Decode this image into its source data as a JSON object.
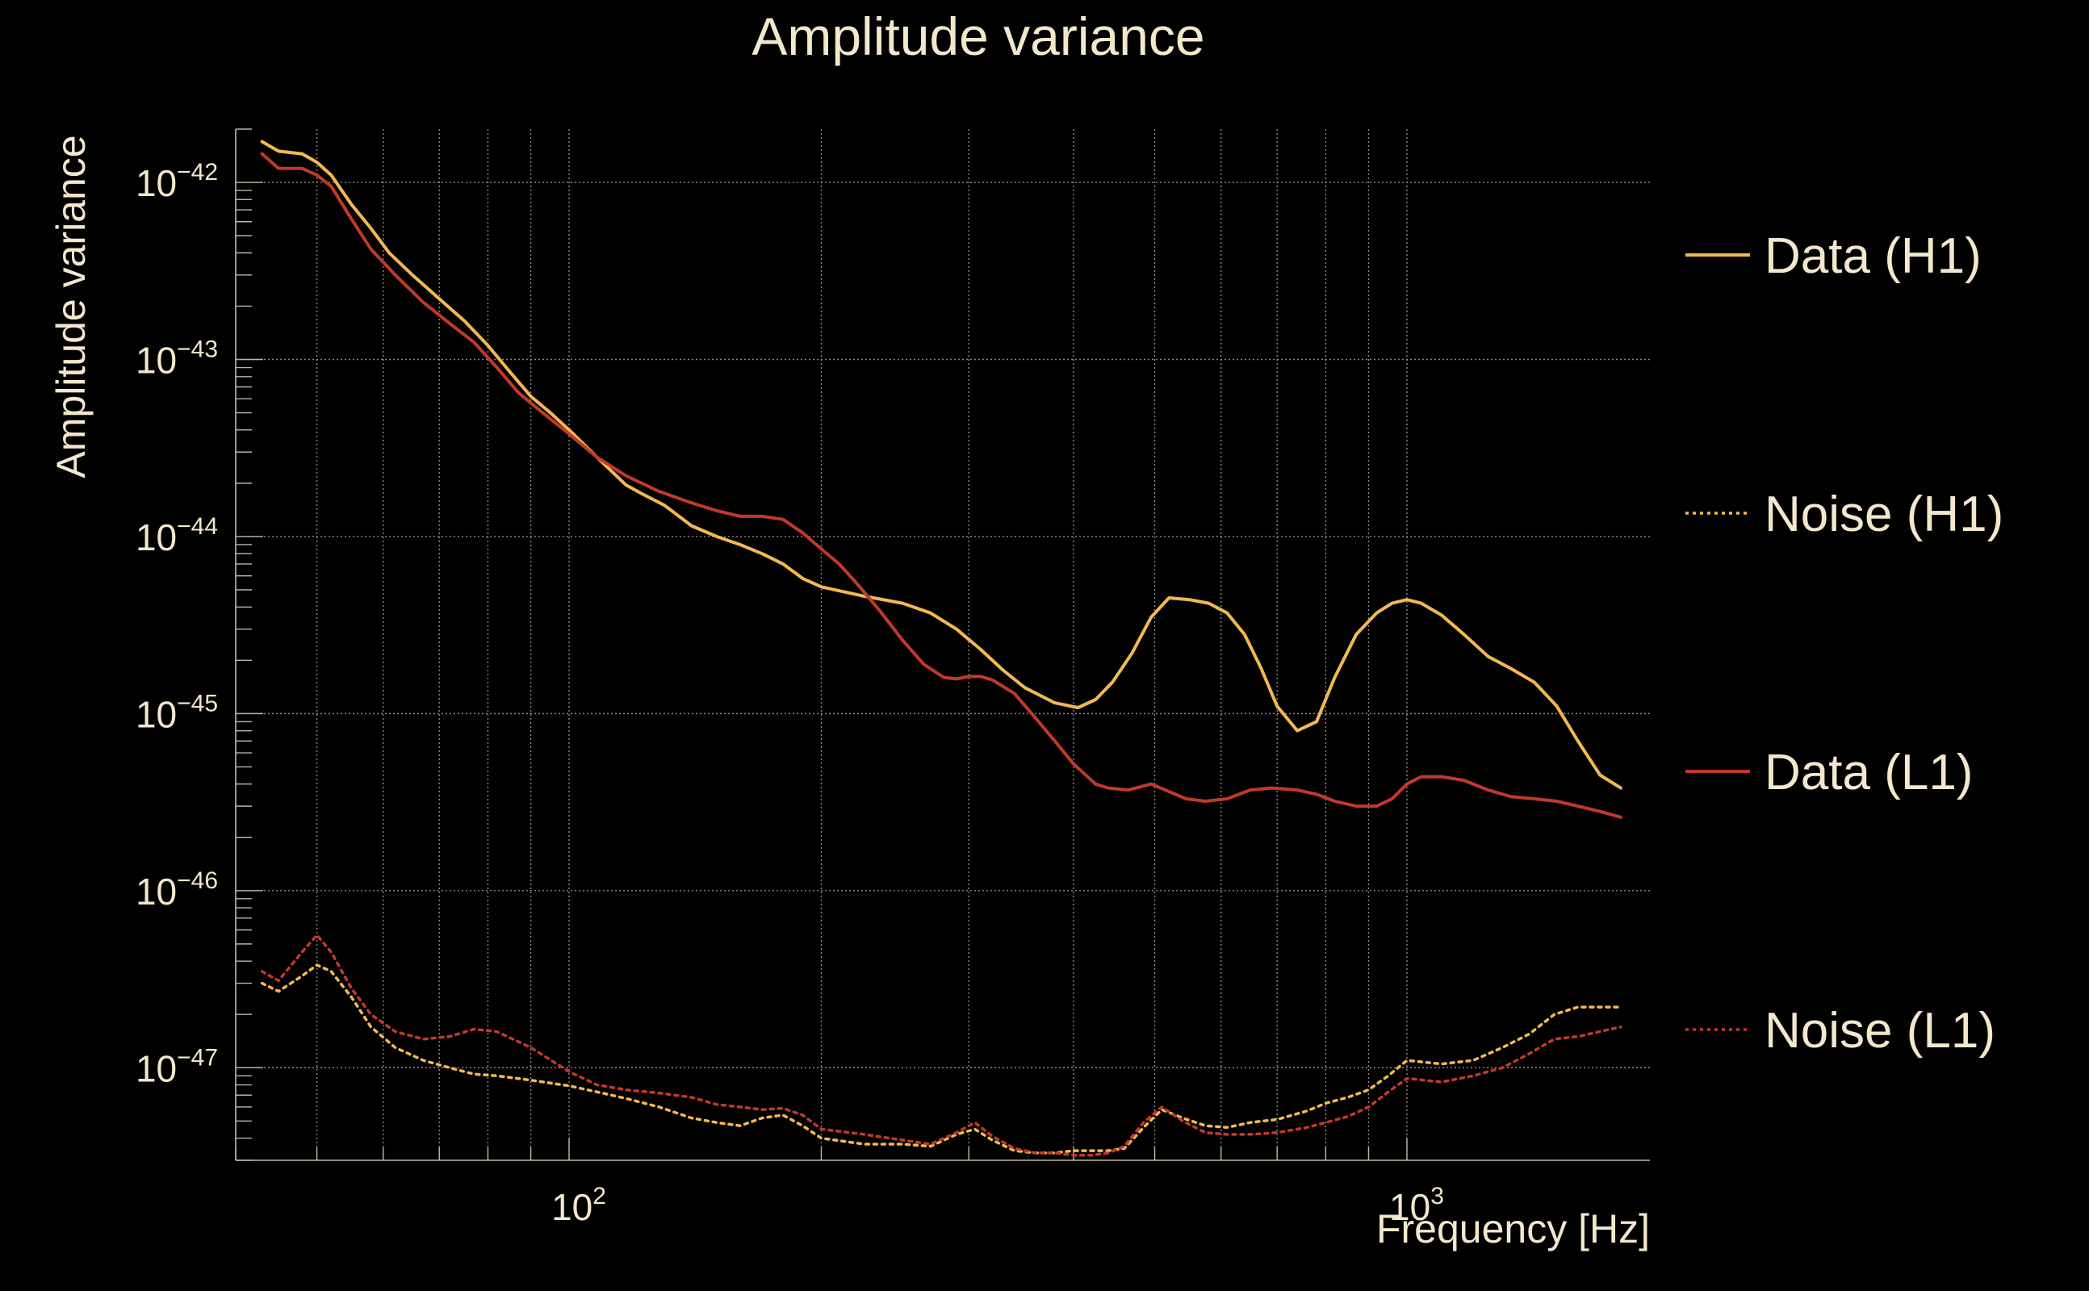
{
  "chart_data": {
    "type": "line",
    "title": "Amplitude variance",
    "xlabel": "Frequency [Hz]",
    "ylabel": "Amplitude variance",
    "x_scale": "log",
    "y_scale": "log",
    "xlim": [
      40,
      1950
    ],
    "ylim": [
      3e-48,
      2e-42
    ],
    "grid": true,
    "legend_position": "right",
    "colors": {
      "background": "#000000",
      "text": "#f3e7cc",
      "axis": "#bdb6a6",
      "grid": "#8f8a80",
      "h1": "#f2b950",
      "l1": "#c0392b"
    },
    "x_ticks": [
      {
        "value": 100,
        "base": "10",
        "exp": "2"
      },
      {
        "value": 1000,
        "base": "10",
        "exp": "3"
      }
    ],
    "y_ticks": [
      {
        "value": 1e-42,
        "base": "10",
        "exp": "−42"
      },
      {
        "value": 1e-43,
        "base": "10",
        "exp": "−43"
      },
      {
        "value": 1e-44,
        "base": "10",
        "exp": "−44"
      },
      {
        "value": 1e-45,
        "base": "10",
        "exp": "−45"
      },
      {
        "value": 1e-46,
        "base": "10",
        "exp": "−46"
      },
      {
        "value": 1e-47,
        "base": "10",
        "exp": "−47"
      }
    ],
    "series": [
      {
        "name": "Data (H1)",
        "color": "#f2b950",
        "dash": "solid",
        "x": [
          43,
          45,
          48,
          50,
          52,
          55,
          58,
          61,
          65,
          70,
          75,
          80,
          85,
          90,
          95,
          100,
          108,
          117,
          122,
          130,
          140,
          150,
          160,
          170,
          180,
          190,
          200,
          225,
          250,
          270,
          290,
          310,
          330,
          350,
          380,
          405,
          425,
          445,
          470,
          495,
          520,
          550,
          580,
          610,
          640,
          670,
          700,
          740,
          780,
          820,
          870,
          920,
          960,
          1000,
          1040,
          1100,
          1170,
          1250,
          1330,
          1420,
          1510,
          1600,
          1700,
          1800
        ],
        "y": [
          1.7e-42,
          1.5e-42,
          1.45e-42,
          1.3e-42,
          1.1e-42,
          7.5e-43,
          5.5e-43,
          4e-43,
          3e-43,
          2.2e-43,
          1.65e-43,
          1.2e-43,
          8.5e-44,
          6.2e-44,
          5e-44,
          4e-44,
          2.8e-44,
          1.95e-44,
          1.75e-44,
          1.5e-44,
          1.15e-44,
          1e-44,
          9e-45,
          8e-45,
          7e-45,
          5.8e-45,
          5.2e-45,
          4.6e-45,
          4.2e-45,
          3.7e-45,
          3e-45,
          2.3e-45,
          1.75e-45,
          1.4e-45,
          1.15e-45,
          1.08e-45,
          1.2e-45,
          1.5e-45,
          2.2e-45,
          3.5e-45,
          4.5e-45,
          4.4e-45,
          4.2e-45,
          3.7e-45,
          2.8e-45,
          1.8e-45,
          1.1e-45,
          8e-46,
          9e-46,
          1.6e-45,
          2.8e-45,
          3.7e-45,
          4.2e-45,
          4.4e-45,
          4.2e-45,
          3.6e-45,
          2.8e-45,
          2.1e-45,
          1.8e-45,
          1.5e-45,
          1.1e-45,
          7e-46,
          4.5e-46,
          3.8e-46
        ]
      },
      {
        "name": "Noise (H1)",
        "color": "#f2b950",
        "dash": "dotted",
        "x": [
          43,
          45,
          48,
          50,
          52,
          55,
          58,
          62,
          67,
          72,
          77,
          82,
          90,
          100,
          108,
          117,
          128,
          140,
          150,
          160,
          170,
          180,
          190,
          200,
          225,
          250,
          270,
          290,
          305,
          320,
          340,
          360,
          380,
          400,
          420,
          440,
          460,
          485,
          510,
          540,
          575,
          610,
          650,
          700,
          760,
          800,
          850,
          900,
          950,
          1000,
          1100,
          1200,
          1300,
          1400,
          1500,
          1600,
          1800
        ],
        "y": [
          3e-47,
          2.7e-47,
          3.3e-47,
          3.8e-47,
          3.5e-47,
          2.5e-47,
          1.7e-47,
          1.3e-47,
          1.1e-47,
          1e-47,
          9.2e-48,
          9e-48,
          8.5e-48,
          7.9e-48,
          7.3e-48,
          6.7e-48,
          6e-48,
          5.2e-48,
          4.9e-48,
          4.7e-48,
          5.2e-48,
          5.4e-48,
          4.7e-48,
          4e-48,
          3.7e-48,
          3.7e-48,
          3.6e-48,
          4.2e-48,
          4.5e-48,
          3.9e-48,
          3.4e-48,
          3.3e-48,
          3.3e-48,
          3.4e-48,
          3.4e-48,
          3.4e-48,
          3.5e-48,
          4.6e-48,
          5.8e-48,
          5.2e-48,
          4.7e-48,
          4.6e-48,
          4.9e-48,
          5.1e-48,
          5.7e-48,
          6.3e-48,
          6.8e-48,
          7.5e-48,
          9e-48,
          1.1e-47,
          1.05e-47,
          1.1e-47,
          1.3e-47,
          1.55e-47,
          2e-47,
          2.2e-47,
          2.2e-47
        ]
      },
      {
        "name": "Data (L1)",
        "color": "#c0392b",
        "dash": "solid",
        "x": [
          43,
          45,
          48,
          50,
          52,
          55,
          58,
          62,
          67,
          72,
          77,
          82,
          87,
          93,
          100,
          108,
          117,
          128,
          140,
          150,
          160,
          170,
          180,
          190,
          200,
          210,
          220,
          235,
          250,
          265,
          280,
          290,
          300,
          310,
          320,
          340,
          360,
          380,
          400,
          425,
          440,
          465,
          495,
          515,
          545,
          575,
          610,
          650,
          690,
          740,
          780,
          820,
          870,
          920,
          960,
          1000,
          1040,
          1100,
          1170,
          1250,
          1330,
          1420,
          1510,
          1600,
          1700,
          1800
        ],
        "y": [
          1.45e-42,
          1.2e-42,
          1.2e-42,
          1.1e-42,
          9.5e-43,
          6.2e-43,
          4.2e-43,
          3e-43,
          2.1e-43,
          1.6e-43,
          1.25e-43,
          9e-44,
          6.5e-44,
          5e-44,
          3.8e-44,
          2.8e-44,
          2.2e-44,
          1.8e-44,
          1.55e-44,
          1.4e-44,
          1.3e-44,
          1.3e-44,
          1.25e-44,
          1.05e-44,
          8.5e-45,
          7e-45,
          5.5e-45,
          3.8e-45,
          2.6e-45,
          1.9e-45,
          1.6e-45,
          1.57e-45,
          1.62e-45,
          1.62e-45,
          1.55e-45,
          1.3e-45,
          9.5e-46,
          7e-46,
          5.2e-46,
          4e-46,
          3.8e-46,
          3.7e-46,
          4e-46,
          3.7e-46,
          3.3e-46,
          3.2e-46,
          3.3e-46,
          3.7e-46,
          3.8e-46,
          3.7e-46,
          3.5e-46,
          3.2e-46,
          3e-46,
          3e-46,
          3.3e-46,
          4e-46,
          4.4e-46,
          4.4e-46,
          4.2e-46,
          3.7e-46,
          3.4e-46,
          3.3e-46,
          3.2e-46,
          3e-46,
          2.8e-46,
          2.6e-46
        ]
      },
      {
        "name": "Noise (L1)",
        "color": "#c0392b",
        "dash": "dotted",
        "x": [
          43,
          45,
          48,
          50,
          52,
          55,
          58,
          62,
          67,
          72,
          77,
          82,
          90,
          100,
          108,
          117,
          128,
          140,
          150,
          160,
          170,
          180,
          190,
          200,
          225,
          250,
          270,
          290,
          305,
          320,
          340,
          360,
          380,
          400,
          420,
          440,
          460,
          485,
          510,
          540,
          575,
          610,
          650,
          700,
          760,
          800,
          850,
          900,
          950,
          1000,
          1100,
          1200,
          1300,
          1400,
          1500,
          1600,
          1800
        ],
        "y": [
          3.5e-47,
          3.1e-47,
          4.5e-47,
          5.6e-47,
          4.5e-47,
          2.8e-47,
          2e-47,
          1.6e-47,
          1.45e-47,
          1.5e-47,
          1.65e-47,
          1.6e-47,
          1.3e-47,
          9.5e-48,
          8e-48,
          7.5e-48,
          7.2e-48,
          6.8e-48,
          6.2e-48,
          6e-48,
          5.8e-48,
          5.9e-48,
          5.4e-48,
          4.5e-48,
          4.2e-48,
          3.9e-48,
          3.7e-48,
          4.3e-48,
          4.9e-48,
          4.1e-48,
          3.5e-48,
          3.3e-48,
          3.3e-48,
          3.2e-48,
          3.2e-48,
          3.3e-48,
          3.6e-48,
          4.9e-48,
          6e-48,
          5e-48,
          4.3e-48,
          4.2e-48,
          4.2e-48,
          4.3e-48,
          4.6e-48,
          4.9e-48,
          5.3e-48,
          6e-48,
          7.3e-48,
          8.7e-48,
          8.3e-48,
          9e-48,
          1e-47,
          1.2e-47,
          1.45e-47,
          1.5e-47,
          1.7e-47
        ]
      }
    ]
  }
}
